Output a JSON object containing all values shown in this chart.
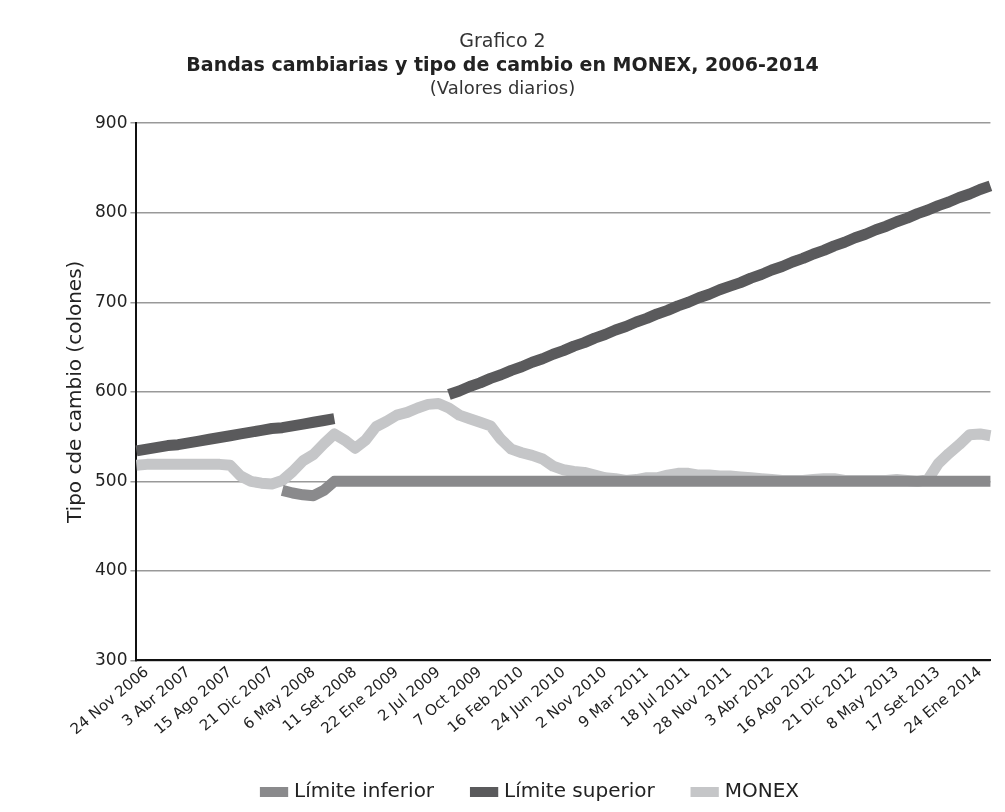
{
  "chart_data": {
    "type": "line",
    "title": "Grafico 2",
    "subtitle": "Bandas cambiarias y tipo de cambio en MONEX, 2006-2014",
    "annotations": [
      "(Valores diarios)"
    ],
    "ylabel": "Tipo cde cambio (colones)",
    "categories": [
      null,
      "24 Nov 2006",
      null,
      null,
      null,
      "3 Abr 2007",
      null,
      null,
      null,
      "15 Ago 2007",
      null,
      null,
      null,
      "21 Dic 2007",
      null,
      null,
      null,
      "6 May 2008",
      null,
      null,
      null,
      "11 Set 2008",
      null,
      null,
      null,
      "22 Ene 2009",
      null,
      null,
      null,
      "2 Jul 2009",
      null,
      null,
      null,
      "7 Oct 2009",
      null,
      null,
      null,
      "16 Feb 2010",
      null,
      null,
      null,
      "24 Jun 2010",
      null,
      null,
      null,
      "2 Nov 2010",
      null,
      null,
      null,
      "9 Mar 2011",
      null,
      null,
      null,
      "18 Jul 2011",
      null,
      null,
      null,
      "28 Nov 2011",
      null,
      null,
      null,
      "3 Abr 2012",
      null,
      null,
      null,
      "16 Ago 2012",
      null,
      null,
      null,
      "21 Dic 2012",
      null,
      null,
      null,
      "8 May 2013",
      null,
      null,
      null,
      "17 Set 2013",
      null,
      null,
      null,
      "24 Ene 2014",
      null
    ],
    "series": [
      {
        "name": "Límite inferior",
        "color": "#8a8a8c",
        "values": [
          null,
          null,
          null,
          null,
          null,
          null,
          null,
          null,
          null,
          null,
          null,
          null,
          null,
          null,
          490,
          487,
          485,
          484,
          490,
          500,
          500,
          500,
          500,
          500,
          500,
          500,
          500,
          500,
          500,
          500,
          500,
          500,
          500,
          500,
          500,
          500,
          500,
          500,
          500,
          500,
          500,
          500,
          500,
          500,
          500,
          500,
          500,
          500,
          500,
          500,
          500,
          500,
          500,
          500,
          500,
          500,
          500,
          500,
          500,
          500,
          500,
          500,
          500,
          500,
          500,
          500,
          500,
          500,
          500,
          500,
          500,
          500,
          500,
          500,
          500,
          500,
          500,
          500,
          500,
          500,
          500,
          500,
          500
        ]
      },
      {
        "name": "Límite superior",
        "color": "#5a5a5c",
        "values": [
          534,
          536,
          538,
          540,
          541,
          543,
          545,
          547,
          549,
          551,
          553,
          555,
          557,
          559,
          560,
          562,
          564,
          566,
          568,
          570,
          null,
          null,
          null,
          null,
          null,
          null,
          null,
          null,
          null,
          null,
          597,
          601,
          606,
          610,
          615,
          619,
          624,
          628,
          633,
          637,
          642,
          646,
          651,
          655,
          660,
          664,
          669,
          673,
          678,
          682,
          687,
          691,
          696,
          700,
          705,
          709,
          714,
          718,
          722,
          727,
          731,
          736,
          740,
          745,
          749,
          754,
          758,
          763,
          767,
          772,
          776,
          781,
          785,
          790,
          794,
          799,
          803,
          808,
          812,
          817,
          821,
          826,
          830
        ]
      },
      {
        "name": "MONEX",
        "color": "#c5c6c8",
        "values": [
          518,
          519,
          519,
          519,
          519,
          519,
          519,
          519,
          519,
          518,
          506,
          500,
          498,
          497,
          501,
          511,
          523,
          530,
          542,
          553,
          546,
          537,
          546,
          561,
          567,
          574,
          577,
          582,
          586,
          587,
          582,
          574,
          570,
          566,
          562,
          547,
          536,
          532,
          529,
          525,
          517,
          513,
          511,
          510,
          507,
          504,
          503,
          501,
          502,
          504,
          504,
          507,
          509,
          509,
          507,
          507,
          506,
          506,
          505,
          504,
          503,
          502,
          501,
          501,
          501,
          502,
          503,
          503,
          501,
          501,
          501,
          501,
          501,
          502,
          501,
          500,
          502,
          520,
          531,
          541,
          552,
          553,
          551
        ]
      }
    ],
    "ylim": [
      300,
      900
    ],
    "yticks": [
      300,
      400,
      500,
      600,
      700,
      800,
      900
    ],
    "grid": "y",
    "legend": "bottom",
    "marker": "none",
    "line_style": "solid"
  }
}
